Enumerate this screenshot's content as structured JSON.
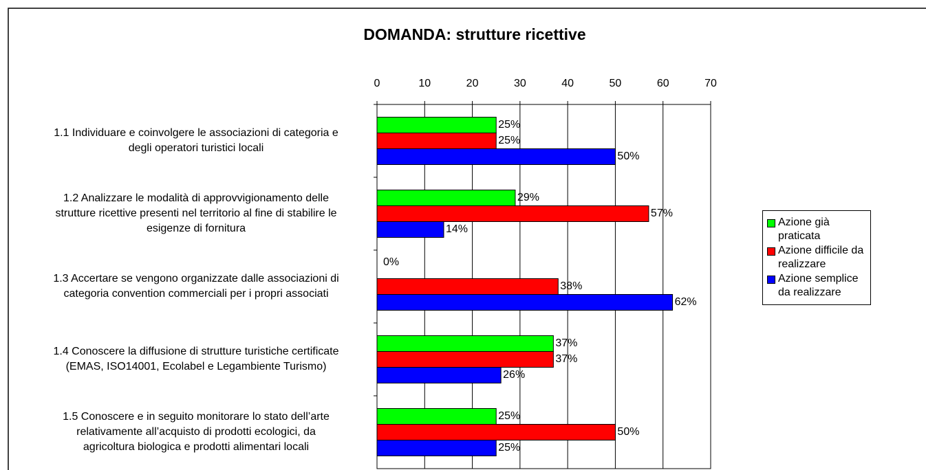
{
  "chart_data": {
    "type": "bar",
    "orientation": "horizontal",
    "title": "DOMANDA: strutture ricettive",
    "categories": [
      "1.1 Individuare e coinvolgere le associazioni di categoria e\ndegli operatori turistici locali",
      "1.2  Analizzare le modalità di approvvigionamento delle\nstrutture ricettive presenti nel territorio al fine di stabilire le\nesigenze di fornitura",
      "1.3  Accertare se vengono organizzate dalle associazioni di\ncategoria convention commerciali per i propri associati",
      "1.4  Conoscere la diffusione di strutture turistiche certificate\n(EMAS, ISO14001, Ecolabel e Legambiente Turismo)",
      "1.5  Conoscere e in seguito monitorare lo stato dell’arte\nrelativamente all’acquisto di prodotti ecologici, da\nagricoltura biologica e prodotti alimentari locali"
    ],
    "series": [
      {
        "name": "Azione già praticata",
        "color": "#00ff00",
        "values": [
          25,
          29,
          0,
          37,
          25
        ],
        "value_labels": [
          "25%",
          "29%",
          "0%",
          "37%",
          "25%"
        ]
      },
      {
        "name": "Azione difficile da realizzare",
        "color": "#ff0000",
        "values": [
          25,
          57,
          38,
          37,
          50
        ],
        "value_labels": [
          "25%",
          "57%",
          "38%",
          "37%",
          "50%"
        ]
      },
      {
        "name": "Azione semplice da realizzare",
        "color": "#0000ff",
        "values": [
          50,
          14,
          62,
          26,
          25
        ],
        "value_labels": [
          "50%",
          "14%",
          "62%",
          "26%",
          "25%"
        ]
      }
    ],
    "xlim": [
      0,
      70
    ],
    "xticks": [
      0,
      10,
      20,
      30,
      40,
      50,
      60,
      70
    ],
    "grid": true,
    "legend": "right"
  }
}
